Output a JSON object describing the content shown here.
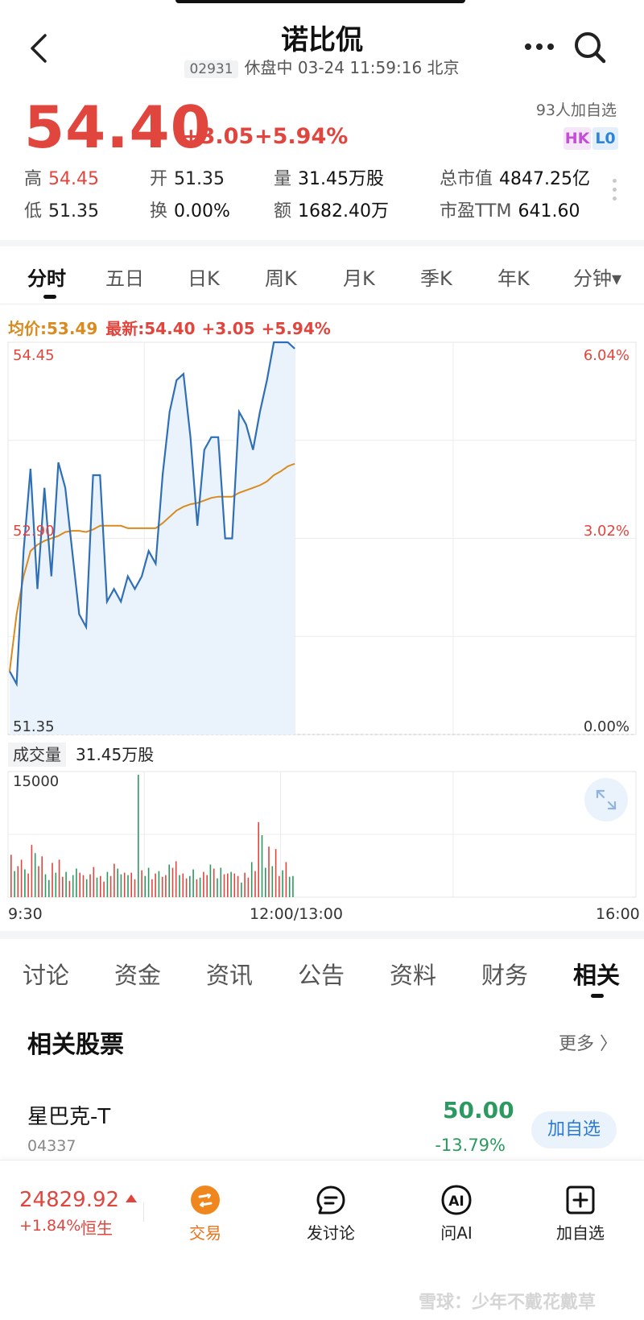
{
  "header": {
    "title": "诺比侃",
    "code": "02931",
    "status": "休盘中 03-24 11:59:16 北京"
  },
  "quote": {
    "price": "54.40",
    "change": "+3.05",
    "change_pct": "+5.94%",
    "watchers": "93人加自选",
    "badges": [
      "HK",
      "L0"
    ],
    "stats": [
      {
        "label": "高",
        "value": "54.45"
      },
      {
        "label": "开",
        "value": "51.35"
      },
      {
        "label": "量",
        "value": "31.45万股"
      },
      {
        "label": "总市值",
        "value": "4847.25亿"
      },
      {
        "label": "低",
        "value": "51.35"
      },
      {
        "label": "换",
        "value": "0.00%"
      },
      {
        "label": "额",
        "value": "1682.40万"
      },
      {
        "label": "市盈TTM",
        "value": "641.60"
      }
    ]
  },
  "period_tabs": [
    "分时",
    "五日",
    "日K",
    "周K",
    "月K",
    "季K",
    "年K",
    "分钟▾"
  ],
  "chart_legend": {
    "avg": "均价:53.49",
    "latest": "最新:54.40",
    "change": "+3.05",
    "pct": "+5.94%"
  },
  "chart_data": [
    {
      "type": "line",
      "y_left_ticks": [
        "54.45",
        "52.90",
        "51.35"
      ],
      "y_right_ticks": [
        "6.04%",
        "3.02%",
        "0.00%"
      ],
      "ylim": [
        51.35,
        54.45
      ],
      "x_ticks": [
        "9:30",
        "12:00/13:00",
        "16:00"
      ],
      "session_fraction_shown": 0.454,
      "series": [
        {
          "type": "price",
          "color": "#2f6fb7",
          "values": [
            51.85,
            51.75,
            52.8,
            53.45,
            52.5,
            53.3,
            52.6,
            53.5,
            53.3,
            52.8,
            52.3,
            52.2,
            53.4,
            53.4,
            52.4,
            52.5,
            52.4,
            52.6,
            52.5,
            52.6,
            52.8,
            52.7,
            53.4,
            53.9,
            54.15,
            54.2,
            53.7,
            53.0,
            53.6,
            53.7,
            53.7,
            52.9,
            52.9,
            53.9,
            53.8,
            53.6,
            53.9,
            54.15,
            54.45,
            54.45,
            54.45,
            54.4
          ]
        },
        {
          "type": "average",
          "color": "#d98b1f",
          "values": [
            51.85,
            52.3,
            52.6,
            52.8,
            52.85,
            52.88,
            52.9,
            52.92,
            52.95,
            52.96,
            52.96,
            52.95,
            52.97,
            53.0,
            53.0,
            53.0,
            53.0,
            52.98,
            52.98,
            52.98,
            52.98,
            52.98,
            53.02,
            53.07,
            53.12,
            53.15,
            53.17,
            53.18,
            53.2,
            53.22,
            53.23,
            53.23,
            53.23,
            53.26,
            53.28,
            53.3,
            53.32,
            53.35,
            53.4,
            53.43,
            53.47,
            53.49
          ]
        }
      ]
    },
    {
      "type": "bar",
      "title": "成交量",
      "total": "31.45万股",
      "y_ticks": [
        "15000"
      ],
      "ylim": [
        0,
        15000
      ],
      "values": [
        5200,
        3200,
        3800,
        4600,
        3400,
        2900,
        6400,
        5400,
        3800,
        5000,
        2800,
        2100,
        4200,
        3000,
        4600,
        2500,
        3100,
        2000,
        2700,
        3500,
        3000,
        2700,
        2200,
        2800,
        3700,
        2400,
        2600,
        1900,
        3100,
        2600,
        4100,
        3500,
        2800,
        3000,
        2700,
        3000,
        2200,
        15000,
        3300,
        2600,
        3600,
        2200,
        2900,
        3200,
        2500,
        2700,
        4000,
        3600,
        4400,
        2700,
        2900,
        2300,
        2600,
        3400,
        2200,
        2400,
        3100,
        2700,
        4000,
        3500,
        2300,
        3600,
        2800,
        2900,
        3100,
        2900,
        2600,
        1800,
        3000,
        2400,
        4300,
        3200,
        9200,
        7600,
        3600,
        6200,
        3800,
        5900,
        2600,
        3300,
        4300,
        2500,
        2600
      ],
      "colors_up_down": "red/green mixed"
    }
  ],
  "content_tabs": [
    "讨论",
    "资金",
    "资讯",
    "公告",
    "资料",
    "财务",
    "相关"
  ],
  "related": {
    "title": "相关股票",
    "more": "更多 〉",
    "stock": {
      "name": "星巴克-T",
      "code": "04337",
      "price": "50.00",
      "pct": "-13.79%",
      "add_label": "加自选"
    }
  },
  "bottom_bar": {
    "index_value": "24829.92",
    "index_change": "+1.84%",
    "index_name": "恒生",
    "items": [
      "交易",
      "发讨论",
      "问AI",
      "加自选"
    ],
    "watermark": "雪球：少年不戴花戴草"
  },
  "colors": {
    "up": "#e0463e",
    "down": "#2c9a60",
    "price_line": "#2f6fb7",
    "avg_line": "#d98b1f",
    "trade_accent": "#f0861e"
  }
}
